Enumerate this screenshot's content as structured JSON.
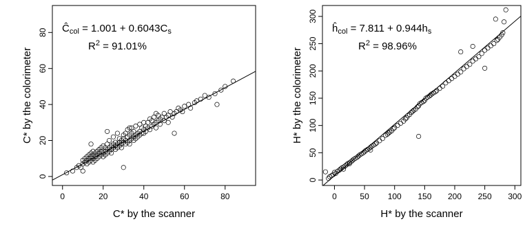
{
  "chart_data": [
    {
      "type": "scatter",
      "title": "",
      "xlabel": "C* by the scanner",
      "ylabel": "C* by the colorimeter",
      "xlim": [
        -5,
        95
      ],
      "ylim": [
        -5,
        95
      ],
      "xticks": [
        0,
        20,
        40,
        60,
        80
      ],
      "yticks": [
        0,
        20,
        40,
        60,
        80
      ],
      "annotation": {
        "equation_lhs": "Ĉ",
        "equation_lhs_sub": "col",
        "equation_rhs": " = 1.001 + 0.6043C",
        "equation_rhs_sub": "s",
        "r2_prefix": "R",
        "r2_sup": "2",
        "r2_value": " = 91.01%"
      },
      "fit": {
        "intercept": 1.001,
        "slope": 0.6043
      },
      "x": [
        2,
        5,
        7,
        8,
        9,
        10,
        10,
        11,
        11,
        12,
        12,
        12,
        13,
        13,
        13,
        14,
        14,
        14,
        15,
        15,
        15,
        15,
        16,
        16,
        16,
        17,
        17,
        17,
        18,
        18,
        18,
        19,
        19,
        19,
        20,
        20,
        20,
        21,
        21,
        21,
        22,
        22,
        22,
        23,
        23,
        23,
        24,
        24,
        24,
        25,
        25,
        25,
        26,
        26,
        26,
        27,
        27,
        27,
        28,
        28,
        28,
        29,
        29,
        29,
        30,
        30,
        30,
        31,
        31,
        31,
        32,
        32,
        32,
        33,
        33,
        33,
        34,
        34,
        34,
        35,
        35,
        35,
        36,
        36,
        36,
        37,
        37,
        38,
        38,
        38,
        39,
        39,
        40,
        40,
        40,
        41,
        41,
        42,
        42,
        43,
        43,
        44,
        44,
        45,
        45,
        46,
        46,
        47,
        47,
        48,
        48,
        49,
        50,
        50,
        51,
        52,
        52,
        53,
        54,
        55,
        56,
        57,
        58,
        59,
        60,
        62,
        63,
        65,
        66,
        68,
        70,
        72,
        75,
        76,
        78,
        80,
        84,
        30,
        10,
        14,
        22,
        46,
        33,
        55
      ],
      "y": [
        2,
        3,
        5,
        6,
        5,
        7,
        9,
        8,
        10,
        9,
        11,
        7,
        10,
        12,
        8,
        11,
        9,
        13,
        10,
        12,
        14,
        8,
        11,
        13,
        9,
        12,
        10,
        14,
        13,
        15,
        11,
        12,
        14,
        16,
        13,
        11,
        17,
        14,
        12,
        16,
        15,
        13,
        18,
        14,
        16,
        20,
        15,
        17,
        13,
        16,
        18,
        22,
        17,
        15,
        19,
        18,
        16,
        24,
        17,
        19,
        21,
        18,
        20,
        16,
        19,
        21,
        23,
        20,
        18,
        24,
        19,
        22,
        26,
        20,
        23,
        18,
        21,
        24,
        27,
        22,
        20,
        25,
        23,
        21,
        28,
        24,
        22,
        25,
        23,
        29,
        24,
        27,
        26,
        24,
        30,
        25,
        28,
        27,
        30,
        26,
        32,
        28,
        31,
        29,
        33,
        30,
        27,
        31,
        34,
        29,
        32,
        33,
        31,
        35,
        33,
        34,
        30,
        36,
        33,
        35,
        36,
        38,
        37,
        36,
        39,
        40,
        38,
        41,
        42,
        43,
        45,
        44,
        46,
        40,
        48,
        50,
        53,
        5,
        3,
        18,
        25,
        35,
        27,
        24
      ]
    },
    {
      "type": "scatter",
      "title": "",
      "xlabel": "H* by the scanner",
      "ylabel": "H* by the colorimeter",
      "xlim": [
        -20,
        310
      ],
      "ylim": [
        -10,
        320
      ],
      "xticks": [
        0,
        50,
        100,
        150,
        200,
        250,
        300
      ],
      "yticks": [
        0,
        50,
        100,
        150,
        200,
        250,
        300
      ],
      "annotation": {
        "equation_lhs": "ĥ",
        "equation_lhs_sub": "col",
        "equation_rhs": " = 7.811 + 0.944h",
        "equation_rhs_sub": "s",
        "r2_prefix": "R",
        "r2_sup": "2",
        "r2_value": " = 98.96%"
      },
      "fit": {
        "intercept": 7.811,
        "slope": 0.944
      },
      "x": [
        -15,
        -10,
        -8,
        -5,
        -2,
        0,
        2,
        5,
        8,
        10,
        12,
        15,
        18,
        20,
        22,
        25,
        28,
        30,
        32,
        35,
        38,
        40,
        42,
        45,
        48,
        50,
        52,
        55,
        58,
        60,
        62,
        65,
        68,
        70,
        75,
        80,
        85,
        88,
        90,
        92,
        95,
        98,
        100,
        105,
        110,
        115,
        118,
        120,
        122,
        125,
        128,
        130,
        132,
        135,
        138,
        140,
        142,
        145,
        148,
        150,
        152,
        155,
        158,
        160,
        162,
        165,
        168,
        170,
        175,
        180,
        185,
        190,
        195,
        200,
        205,
        210,
        215,
        220,
        225,
        230,
        235,
        240,
        245,
        250,
        255,
        260,
        265,
        270,
        272,
        275,
        278,
        280,
        282,
        285,
        140,
        60,
        25,
        15,
        230,
        210,
        250,
        268
      ],
      "y": [
        15,
        3,
        6,
        8,
        10,
        14,
        12,
        16,
        18,
        20,
        22,
        24,
        26,
        28,
        30,
        32,
        34,
        36,
        38,
        40,
        42,
        44,
        46,
        48,
        50,
        52,
        54,
        56,
        58,
        60,
        62,
        64,
        66,
        68,
        72,
        76,
        82,
        84,
        86,
        88,
        90,
        94,
        96,
        100,
        104,
        108,
        112,
        114,
        118,
        120,
        124,
        126,
        128,
        130,
        134,
        136,
        140,
        142,
        144,
        146,
        150,
        152,
        154,
        156,
        158,
        160,
        162,
        164,
        168,
        172,
        178,
        182,
        186,
        190,
        194,
        198,
        204,
        208,
        212,
        218,
        222,
        226,
        232,
        238,
        242,
        246,
        250,
        256,
        258,
        262,
        266,
        270,
        290,
        312,
        80,
        55,
        30,
        20,
        245,
        235,
        205,
        295
      ]
    }
  ]
}
